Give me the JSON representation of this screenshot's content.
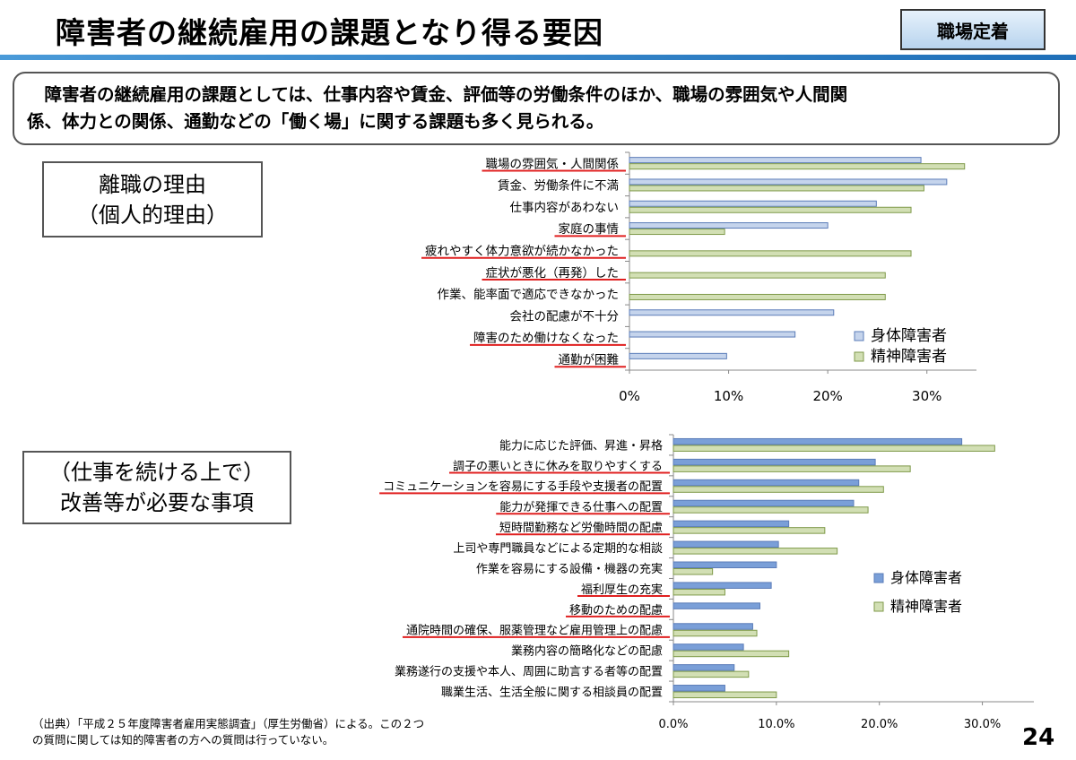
{
  "header": {
    "title": "障害者の継続雇用の課題となり得る要因",
    "badge": "職場定着"
  },
  "summary": {
    "line1": "障害者の継続雇用の課題としては、仕事内容や賃金、評価等の労働条件のほか、職場の雰囲気や人間関",
    "line2": "係、体力との関係、通勤などの「働く場」に関する課題も多く見られる。"
  },
  "section1": {
    "label_line1": "離職の理由",
    "label_line2": "（個人的理由）"
  },
  "section2": {
    "label_line1": "（仕事を続ける上で）",
    "label_line2": "改善等が必要な事項"
  },
  "colors": {
    "physical": "#c5d4ec",
    "mental": "#d2dfb4",
    "physical_border": "#5b7cb8",
    "mental_border": "#7f9a4a",
    "underline": "#e02020",
    "physical2": "#7a9fd8"
  },
  "chart_data": [
    {
      "type": "bar",
      "orientation": "horizontal",
      "categories": [
        "職場の雰囲気・人間関係",
        "賃金、労働条件に不満",
        "仕事内容があわない",
        "家庭の事情",
        "疲れやすく体力意欲が続かなかった",
        "症状が悪化（再発）した",
        "作業、能率面で適応できなかった",
        "会社の配慮が不十分",
        "障害のため働けなくなった",
        "通勤が困難"
      ],
      "underlined": [
        true,
        false,
        false,
        true,
        true,
        true,
        false,
        false,
        true,
        true
      ],
      "series": [
        {
          "name": "身体障害者",
          "values": [
            29.4,
            32.0,
            24.9,
            20.0,
            null,
            null,
            null,
            20.6,
            16.7,
            9.8
          ]
        },
        {
          "name": "精神障害者",
          "values": [
            33.8,
            29.7,
            28.4,
            9.6,
            28.4,
            25.8,
            25.8,
            null,
            null,
            null
          ]
        }
      ],
      "xlim": [
        0,
        35
      ],
      "ticks": [
        "0%",
        "10%",
        "20%",
        "30%"
      ],
      "legend": "right"
    },
    {
      "type": "bar",
      "orientation": "horizontal",
      "categories": [
        "能力に応じた評価、昇進・昇格",
        "調子の悪いときに休みを取りやすくする",
        "コミュニケーションを容易にする手段や支援者の配置",
        "能力が発揮できる仕事への配置",
        "短時間勤務など労働時間の配慮",
        "上司や専門職員などによる定期的な相談",
        "作業を容易にする設備・機器の充実",
        "福利厚生の充実",
        "移動のための配慮",
        "通院時間の確保、服薬管理など雇用管理上の配慮",
        "業務内容の簡略化などの配慮",
        "業務遂行の支援や本人、周囲に助言する者等の配置",
        "職業生活、生活全般に関する相談員の配置"
      ],
      "underlined": [
        false,
        true,
        true,
        true,
        true,
        false,
        false,
        true,
        true,
        true,
        false,
        false,
        false
      ],
      "series": [
        {
          "name": "身体障害者",
          "values": [
            28.0,
            19.6,
            18.0,
            17.5,
            11.2,
            10.2,
            10.0,
            9.5,
            8.4,
            7.7,
            6.8,
            5.9,
            5.0
          ]
        },
        {
          "name": "精神障害者",
          "values": [
            31.2,
            23.0,
            20.4,
            18.9,
            14.7,
            15.9,
            3.8,
            5.0,
            null,
            8.1,
            11.2,
            7.3,
            10.0
          ]
        }
      ],
      "xlim": [
        0,
        35
      ],
      "ticks": [
        "0.0%",
        "10.0%",
        "20.0%",
        "30.0%"
      ],
      "legend": "right"
    }
  ],
  "footnote": {
    "line1": "（出典）「平成２５年度障害者雇用実態調査」（厚生労働省）による。この２つ",
    "line2": "の質問に関しては知的障害者の方への質問は行っていない。"
  },
  "page_number": "24"
}
